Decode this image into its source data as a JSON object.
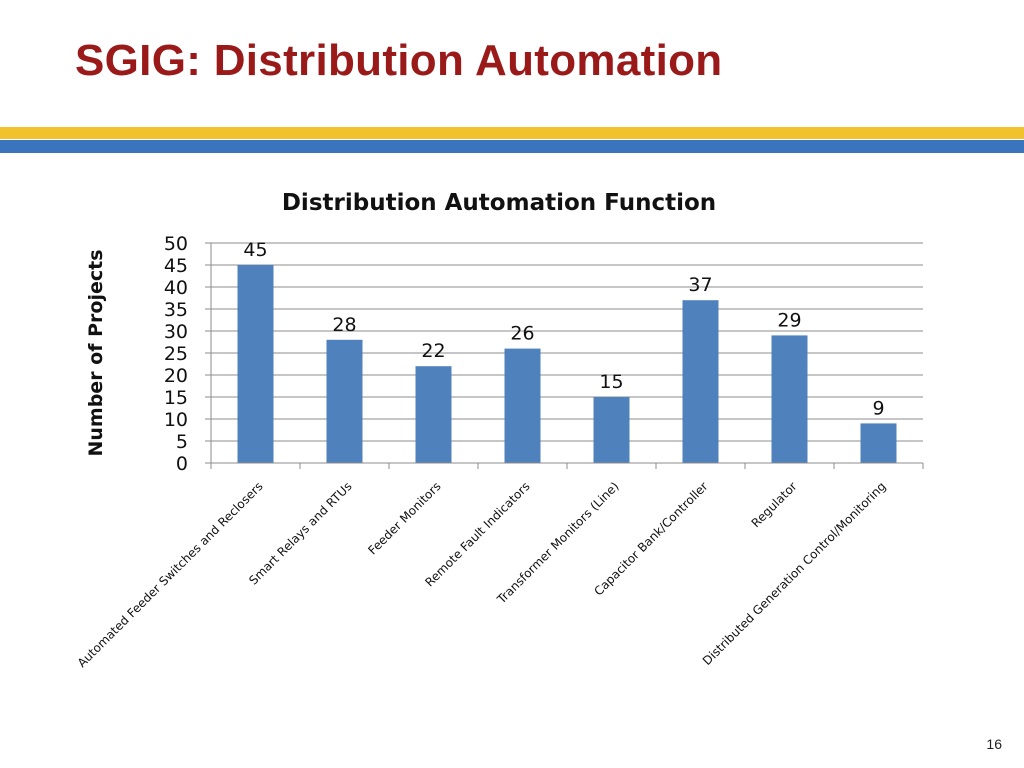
{
  "slide": {
    "title": "SGIG:  Distribution Automation",
    "page_number": "16",
    "colors": {
      "title": "#9a1a1a",
      "band_gold": "#f2c12e",
      "band_blue": "#3a74bd",
      "bar": "#4f81bd"
    }
  },
  "chart_data": {
    "type": "bar",
    "title": "Distribution Automation Function",
    "xlabel": "",
    "ylabel": "Number of Projects",
    "categories": [
      "Automated Feeder Switches and Reclosers",
      "Smart Relays and RTUs",
      "Feeder Monitors",
      "Remote Fault Indicators",
      "Transformer Monitors (Line)",
      "Capacitor Bank/Controller",
      "Regulator",
      "Distributed Generation Control/Monitoring"
    ],
    "values": [
      45,
      28,
      22,
      26,
      15,
      37,
      29,
      9
    ],
    "data_labels": [
      "45",
      "28",
      "22",
      "26",
      "15",
      "37",
      "29",
      "9"
    ],
    "ylim": [
      0,
      50
    ],
    "yticks": [
      0,
      5,
      10,
      15,
      20,
      25,
      30,
      35,
      40,
      45,
      50
    ],
    "ytick_labels": [
      "0",
      "5",
      "10",
      "15",
      "20",
      "25",
      "30",
      "35",
      "40",
      "45",
      "50"
    ],
    "grid": true,
    "legend": "none"
  }
}
